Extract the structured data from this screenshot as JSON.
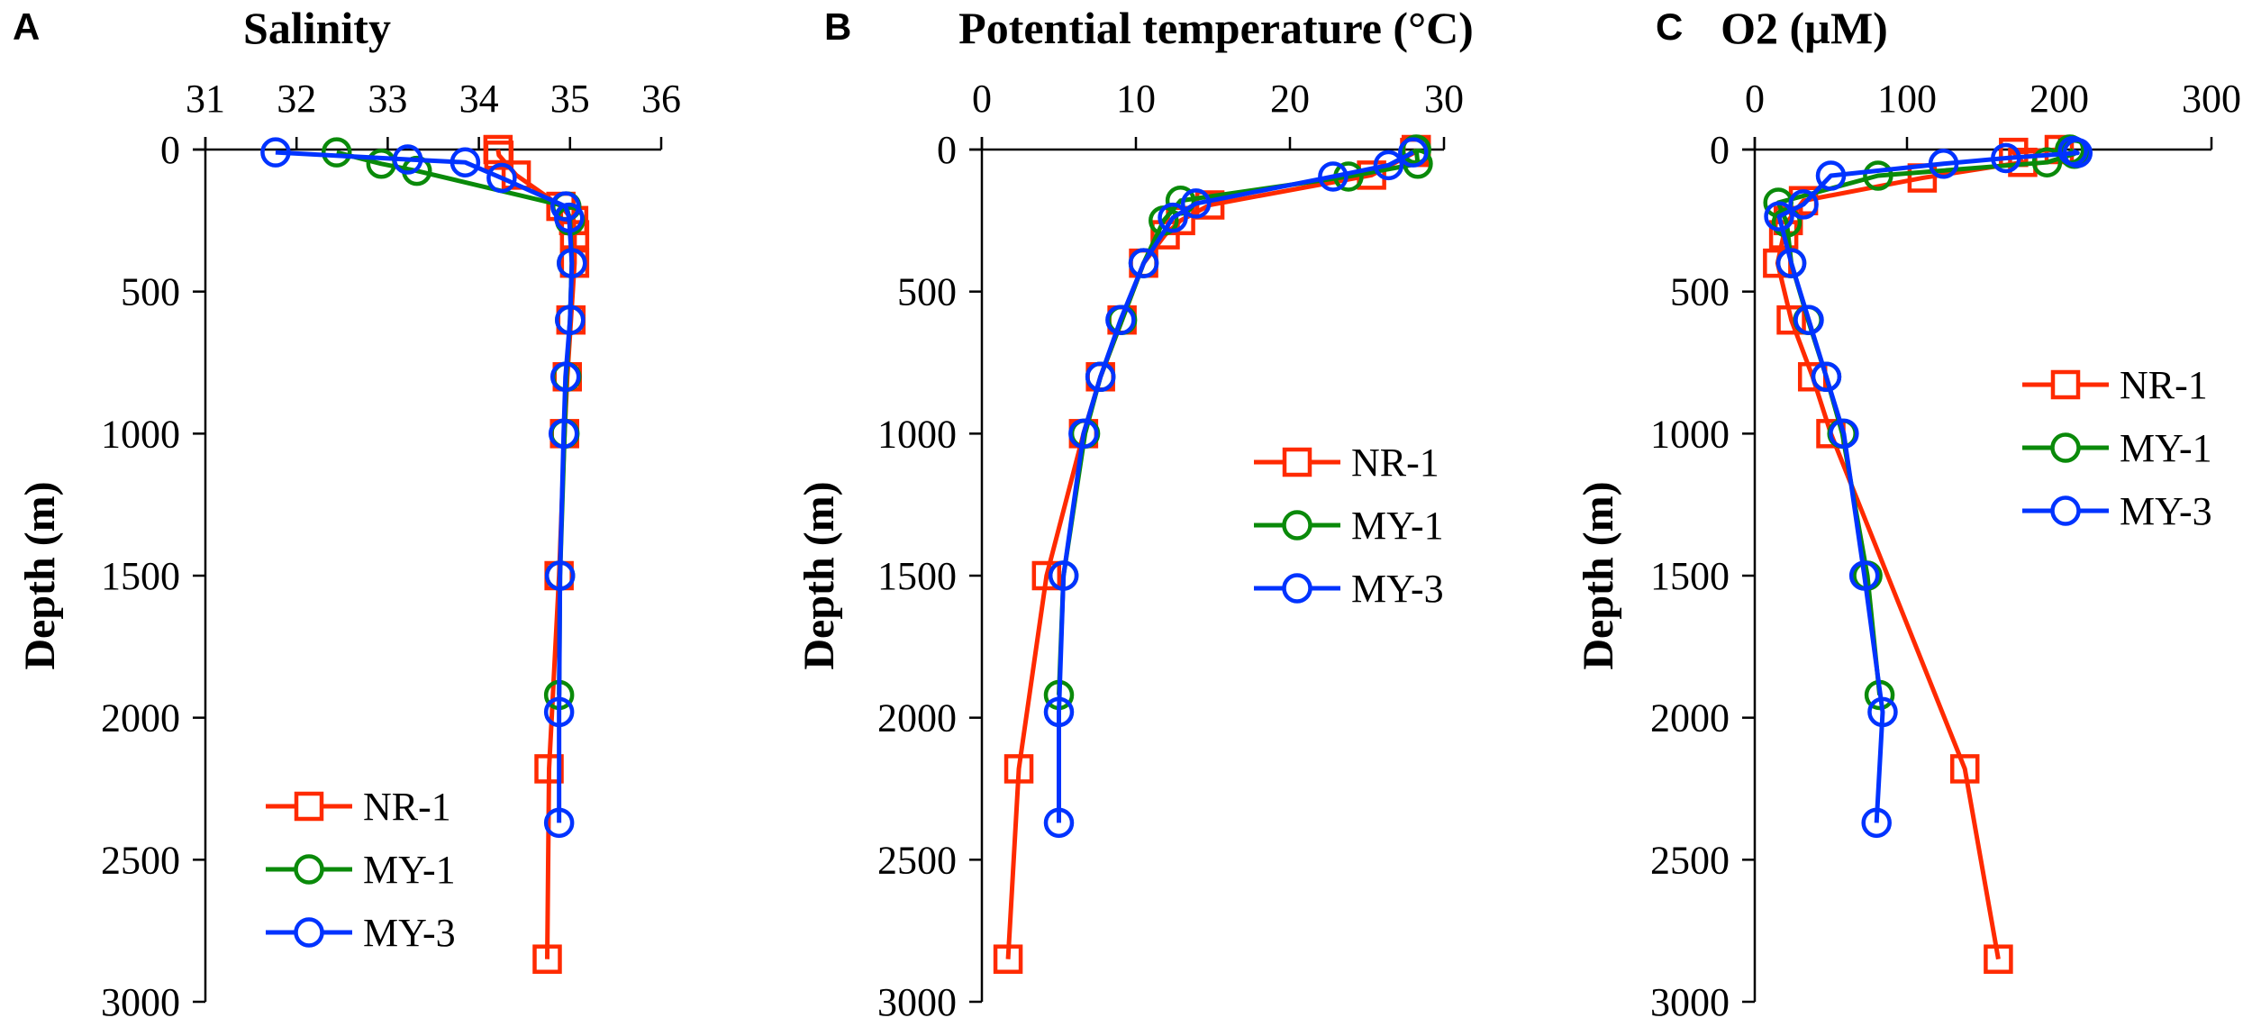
{
  "colors": {
    "NR-1": "#ff2a00",
    "MY-1": "#0a8a0a",
    "MY-3": "#0033ff"
  },
  "chart_data": [
    {
      "panel": "A",
      "type": "line",
      "title": "Salinity",
      "xlabel": "Salinity",
      "ylabel": "Depth (m)",
      "xlim": [
        31,
        36
      ],
      "ylim": [
        3000,
        0
      ],
      "xticks": [
        "31",
        "32",
        "33",
        "34",
        "35",
        "36"
      ],
      "yticks": [
        "0",
        "500",
        "1000",
        "1500",
        "2000",
        "2500",
        "3000"
      ],
      "legend": "bottom-left",
      "series": [
        {
          "name": "NR-1",
          "marker": "square",
          "points": [
            [
              34.21,
              0
            ],
            [
              34.22,
              20
            ],
            [
              34.41,
              90
            ],
            [
              34.9,
              200
            ],
            [
              35.04,
              250
            ],
            [
              35.05,
              300
            ],
            [
              35.05,
              400
            ],
            [
              35.01,
              600
            ],
            [
              34.97,
              800
            ],
            [
              34.94,
              1000
            ],
            [
              34.88,
              1500
            ],
            [
              34.77,
              2180
            ],
            [
              34.75,
              2850
            ]
          ]
        },
        {
          "name": "MY-1",
          "marker": "circle",
          "points": [
            [
              32.44,
              10
            ],
            [
              32.93,
              50
            ],
            [
              33.32,
              75
            ],
            [
              34.96,
              200
            ],
            [
              35.0,
              250
            ],
            [
              35.02,
              400
            ],
            [
              35.0,
              600
            ],
            [
              34.96,
              800
            ],
            [
              34.94,
              1000
            ],
            [
              34.89,
              1500
            ],
            [
              34.88,
              1920
            ]
          ]
        },
        {
          "name": "MY-3",
          "marker": "circle",
          "points": [
            [
              31.77,
              10
            ],
            [
              33.22,
              35
            ],
            [
              33.85,
              45
            ],
            [
              34.25,
              100
            ],
            [
              34.95,
              200
            ],
            [
              34.99,
              240
            ],
            [
              35.02,
              400
            ],
            [
              35.0,
              600
            ],
            [
              34.95,
              800
            ],
            [
              34.93,
              1000
            ],
            [
              34.89,
              1500
            ],
            [
              34.88,
              1980
            ],
            [
              34.88,
              2370
            ]
          ]
        }
      ]
    },
    {
      "panel": "B",
      "type": "line",
      "title": "Potential temperature (°C)",
      "xlabel": "Potential temperature (°C)",
      "ylabel": "Depth (m)",
      "xlim": [
        0,
        30
      ],
      "ylim": [
        3000,
        0
      ],
      "xticks": [
        "0",
        "10",
        "20",
        "30"
      ],
      "yticks": [
        "0",
        "500",
        "1000",
        "1500",
        "2000",
        "2500",
        "3000"
      ],
      "legend": "center-right",
      "series": [
        {
          "name": "NR-1",
          "marker": "square",
          "points": [
            [
              28.2,
              0
            ],
            [
              28.1,
              10
            ],
            [
              25.3,
              90
            ],
            [
              14.8,
              195
            ],
            [
              12.9,
              250
            ],
            [
              11.9,
              300
            ],
            [
              10.5,
              400
            ],
            [
              9.1,
              600
            ],
            [
              7.7,
              800
            ],
            [
              6.6,
              1000
            ],
            [
              4.2,
              1500
            ],
            [
              2.4,
              2180
            ],
            [
              1.7,
              2850
            ]
          ]
        },
        {
          "name": "MY-1",
          "marker": "circle",
          "points": [
            [
              28.2,
              0
            ],
            [
              28.3,
              50
            ],
            [
              23.8,
              95
            ],
            [
              12.9,
              180
            ],
            [
              11.8,
              250
            ],
            [
              10.5,
              400
            ],
            [
              9.1,
              600
            ],
            [
              7.7,
              800
            ],
            [
              6.7,
              1000
            ],
            [
              5.3,
              1500
            ],
            [
              5.0,
              1920
            ]
          ]
        },
        {
          "name": "MY-3",
          "marker": "circle",
          "points": [
            [
              28.0,
              10
            ],
            [
              26.4,
              55
            ],
            [
              22.8,
              95
            ],
            [
              13.9,
              190
            ],
            [
              12.4,
              240
            ],
            [
              10.5,
              400
            ],
            [
              9.0,
              600
            ],
            [
              7.7,
              800
            ],
            [
              6.6,
              1000
            ],
            [
              5.3,
              1500
            ],
            [
              5.0,
              1980
            ],
            [
              5.0,
              2370
            ]
          ]
        }
      ]
    },
    {
      "panel": "C",
      "type": "line",
      "title": "O",
      "title_sub": "2",
      "title_rest": " (µM)",
      "xlabel": "O2 (µM)",
      "ylabel": "Depth (m)",
      "xlim": [
        0,
        300
      ],
      "ylim": [
        3000,
        0
      ],
      "xticks": [
        "0",
        "100",
        "200",
        "300"
      ],
      "yticks": [
        "0",
        "500",
        "1000",
        "1500",
        "2000",
        "2500",
        "3000"
      ],
      "legend": "top-right",
      "series": [
        {
          "name": "NR-1",
          "marker": "square",
          "points": [
            [
              200,
              0
            ],
            [
              170,
              10
            ],
            [
              176,
              45
            ],
            [
              110,
              100
            ],
            [
              32,
              180
            ],
            [
              22,
              250
            ],
            [
              19,
              300
            ],
            [
              15,
              400
            ],
            [
              24,
              600
            ],
            [
              38,
              800
            ],
            [
              50,
              1000
            ],
            [
              138,
              2180
            ],
            [
              160,
              2850
            ]
          ]
        },
        {
          "name": "MY-1",
          "marker": "circle",
          "points": [
            [
              207,
              0
            ],
            [
              210,
              15
            ],
            [
              192,
              45
            ],
            [
              81,
              92
            ],
            [
              15.5,
              187
            ],
            [
              21,
              257
            ],
            [
              24,
              400
            ],
            [
              35,
              600
            ],
            [
              47,
              800
            ],
            [
              57.5,
              1000
            ],
            [
              74,
              1500
            ],
            [
              82,
              1920
            ]
          ]
        },
        {
          "name": "MY-3",
          "marker": "circle",
          "points": [
            [
              209,
              5
            ],
            [
              212,
              12
            ],
            [
              165,
              30
            ],
            [
              124,
              50
            ],
            [
              50,
              92
            ],
            [
              32,
              193
            ],
            [
              16,
              235
            ],
            [
              24,
              400
            ],
            [
              35.5,
              600
            ],
            [
              47,
              800
            ],
            [
              58.5,
              1000
            ],
            [
              72,
              1500
            ],
            [
              84,
              1980
            ],
            [
              80,
              2370
            ]
          ]
        }
      ]
    }
  ]
}
